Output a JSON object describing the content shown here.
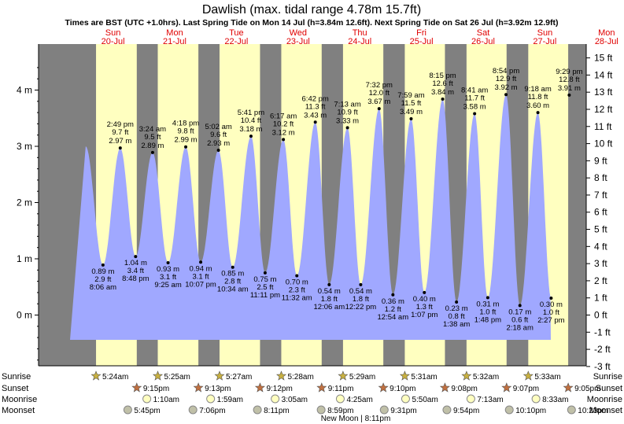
{
  "title": "Dawlish (max. tidal range 4.78m 15.7ft)",
  "subtitle": "Times are BST (UTC +1.0hrs). Last Spring Tide on Mon 14 Jul (h=3.84m 12.6ft). Next Spring Tide on Sat 26 Jul (h=3.92m 12.9ft)",
  "row_labels": {
    "sunrise": "Sunrise",
    "sunset": "Sunset",
    "moonrise": "Moonrise",
    "moonset": "Moonset"
  },
  "moon_phase": "New Moon | 8:11pm",
  "colors": {
    "day": "#ffffc0",
    "night": "#808080",
    "water": "#a0a8ff",
    "label_day": "#e00000"
  },
  "chart_data": {
    "type": "area",
    "y_left_unit": "m",
    "y_right_unit": "ft",
    "y_left_ticks": [
      0,
      1,
      2,
      3,
      4
    ],
    "y_right_ticks": [
      -3,
      -2,
      -1,
      0,
      1,
      2,
      3,
      4,
      5,
      6,
      7,
      8,
      9,
      10,
      11,
      12,
      13,
      14,
      15
    ],
    "ylim_m": [
      -0.9,
      4.7
    ],
    "days": [
      {
        "dow": "Sun",
        "date": "20-Jul"
      },
      {
        "dow": "Mon",
        "date": "21-Jul"
      },
      {
        "dow": "Tue",
        "date": "22-Jul"
      },
      {
        "dow": "Wed",
        "date": "23-Jul"
      },
      {
        "dow": "Thu",
        "date": "24-Jul"
      },
      {
        "dow": "Fri",
        "date": "25-Jul"
      },
      {
        "dow": "Sat",
        "date": "26-Jul"
      },
      {
        "dow": "Sun",
        "date": "27-Jul"
      },
      {
        "dow": "Mon",
        "date": "28-Jul"
      }
    ],
    "tides": [
      {
        "type": "low",
        "time": "8:06 am",
        "day": 0,
        "hour": 8.1,
        "m": 0.89,
        "m_label": "0.89 m",
        "ft": "2.9 ft"
      },
      {
        "type": "high",
        "time": "2:49 pm",
        "day": 0,
        "hour": 14.82,
        "m": 2.97,
        "m_label": "2.97 m",
        "ft": "9.7 ft"
      },
      {
        "type": "low",
        "time": "8:48 pm",
        "day": 0,
        "hour": 20.8,
        "m": 1.04,
        "m_label": "1.04 m",
        "ft": "3.4 ft"
      },
      {
        "type": "high",
        "time": "3:24 am",
        "day": 1,
        "hour": 3.4,
        "m": 2.89,
        "m_label": "2.89 m",
        "ft": "9.5 ft"
      },
      {
        "type": "low",
        "time": "9:25 am",
        "day": 1,
        "hour": 9.42,
        "m": 0.93,
        "m_label": "0.93 m",
        "ft": "3.1 ft"
      },
      {
        "type": "high",
        "time": "4:18 pm",
        "day": 1,
        "hour": 16.3,
        "m": 2.99,
        "m_label": "2.99 m",
        "ft": "9.8 ft"
      },
      {
        "type": "low",
        "time": "10:07 pm",
        "day": 1,
        "hour": 22.12,
        "m": 0.94,
        "m_label": "0.94 m",
        "ft": "3.1 ft"
      },
      {
        "type": "high",
        "time": "5:02 am",
        "day": 2,
        "hour": 5.03,
        "m": 2.93,
        "m_label": "2.93 m",
        "ft": "9.6 ft"
      },
      {
        "type": "low",
        "time": "10:34 am",
        "day": 2,
        "hour": 10.57,
        "m": 0.85,
        "m_label": "0.85 m",
        "ft": "2.8 ft"
      },
      {
        "type": "high",
        "time": "5:41 pm",
        "day": 2,
        "hour": 17.68,
        "m": 3.18,
        "m_label": "3.18 m",
        "ft": "10.4 ft"
      },
      {
        "type": "low",
        "time": "11:11 pm",
        "day": 2,
        "hour": 23.18,
        "m": 0.75,
        "m_label": "0.75 m",
        "ft": "2.5 ft"
      },
      {
        "type": "high",
        "time": "6:17 am",
        "day": 3,
        "hour": 6.28,
        "m": 3.12,
        "m_label": "3.12 m",
        "ft": "10.2 ft"
      },
      {
        "type": "low",
        "time": "11:32 am",
        "day": 3,
        "hour": 11.53,
        "m": 0.7,
        "m_label": "0.70 m",
        "ft": "2.3 ft"
      },
      {
        "type": "high",
        "time": "6:42 pm",
        "day": 3,
        "hour": 18.7,
        "m": 3.43,
        "m_label": "3.43 m",
        "ft": "11.3 ft"
      },
      {
        "type": "low",
        "time": "12:06 am",
        "day": 4,
        "hour": 0.1,
        "m": 0.54,
        "m_label": "0.54 m",
        "ft": "1.8 ft"
      },
      {
        "type": "high",
        "time": "7:13 am",
        "day": 4,
        "hour": 7.22,
        "m": 3.33,
        "m_label": "3.33 m",
        "ft": "10.9 ft"
      },
      {
        "type": "low",
        "time": "12:22 pm",
        "day": 4,
        "hour": 12.37,
        "m": 0.54,
        "m_label": "0.54 m",
        "ft": "1.8 ft"
      },
      {
        "type": "high",
        "time": "7:32 pm",
        "day": 4,
        "hour": 19.53,
        "m": 3.67,
        "m_label": "3.67 m",
        "ft": "12.0 ft"
      },
      {
        "type": "low",
        "time": "12:54 am",
        "day": 5,
        "hour": 0.9,
        "m": 0.36,
        "m_label": "0.36 m",
        "ft": "1.2 ft"
      },
      {
        "type": "high",
        "time": "7:59 am",
        "day": 5,
        "hour": 7.98,
        "m": 3.49,
        "m_label": "3.49 m",
        "ft": "11.5 ft"
      },
      {
        "type": "low",
        "time": "1:07 pm",
        "day": 5,
        "hour": 13.12,
        "m": 0.4,
        "m_label": "0.40 m",
        "ft": "1.3 ft"
      },
      {
        "type": "high",
        "time": "8:15 pm",
        "day": 5,
        "hour": 20.25,
        "m": 3.84,
        "m_label": "3.84 m",
        "ft": "12.6 ft"
      },
      {
        "type": "low",
        "time": "1:38 am",
        "day": 6,
        "hour": 1.63,
        "m": 0.23,
        "m_label": "0.23 m",
        "ft": "0.8 ft"
      },
      {
        "type": "high",
        "time": "8:41 am",
        "day": 6,
        "hour": 8.68,
        "m": 3.58,
        "m_label": "3.58 m",
        "ft": "11.7 ft"
      },
      {
        "type": "low",
        "time": "1:48 pm",
        "day": 6,
        "hour": 13.8,
        "m": 0.31,
        "m_label": "0.31 m",
        "ft": "1.0 ft"
      },
      {
        "type": "high",
        "time": "8:54 pm",
        "day": 6,
        "hour": 20.9,
        "m": 3.92,
        "m_label": "3.92 m",
        "ft": "12.9 ft"
      },
      {
        "type": "low",
        "time": "2:18 am",
        "day": 7,
        "hour": 2.3,
        "m": 0.17,
        "m_label": "0.17 m",
        "ft": "0.6 ft"
      },
      {
        "type": "high",
        "time": "9:18 am",
        "day": 7,
        "hour": 9.3,
        "m": 3.6,
        "m_label": "3.60 m",
        "ft": "11.8 ft"
      },
      {
        "type": "low",
        "time": "2:27 pm",
        "day": 7,
        "hour": 14.45,
        "m": 0.3,
        "m_label": "0.30 m",
        "ft": "1.0 ft"
      },
      {
        "type": "high",
        "time": "9:29 pm",
        "day": 7,
        "hour": 21.48,
        "m": 3.91,
        "m_label": "3.91 m",
        "ft": "12.8 ft"
      }
    ],
    "sunrise": [
      "5:24am",
      "5:25am",
      "5:27am",
      "5:28am",
      "5:29am",
      "5:31am",
      "5:32am",
      "5:33am"
    ],
    "sunset": [
      "9:15pm",
      "9:13pm",
      "9:12pm",
      "9:11pm",
      "9:10pm",
      "9:08pm",
      "9:07pm",
      "9:05pm"
    ],
    "moonrise": [
      {
        "day": 1,
        "time": "1:10am",
        "hour": 1.17
      },
      {
        "day": 2,
        "time": "1:59am",
        "hour": 1.98
      },
      {
        "day": 3,
        "time": "3:05am",
        "hour": 3.08
      },
      {
        "day": 4,
        "time": "4:25am",
        "hour": 4.42
      },
      {
        "day": 5,
        "time": "5:50am",
        "hour": 5.83
      },
      {
        "day": 6,
        "time": "7:13am",
        "hour": 7.22
      },
      {
        "day": 7,
        "time": "8:33am",
        "hour": 8.55
      }
    ],
    "moonset": [
      {
        "day": 0,
        "time": "5:45pm",
        "hour": 17.75
      },
      {
        "day": 1,
        "time": "7:06pm",
        "hour": 19.1
      },
      {
        "day": 2,
        "time": "8:11pm",
        "hour": 20.18
      },
      {
        "day": 3,
        "time": "8:59pm",
        "hour": 20.98
      },
      {
        "day": 4,
        "time": "9:31pm",
        "hour": 21.52
      },
      {
        "day": 5,
        "time": "9:54pm",
        "hour": 21.9
      },
      {
        "day": 6,
        "time": "10:10pm",
        "hour": 22.17
      },
      {
        "day": 7,
        "time": "10:23pm",
        "hour": 22.38
      }
    ]
  }
}
